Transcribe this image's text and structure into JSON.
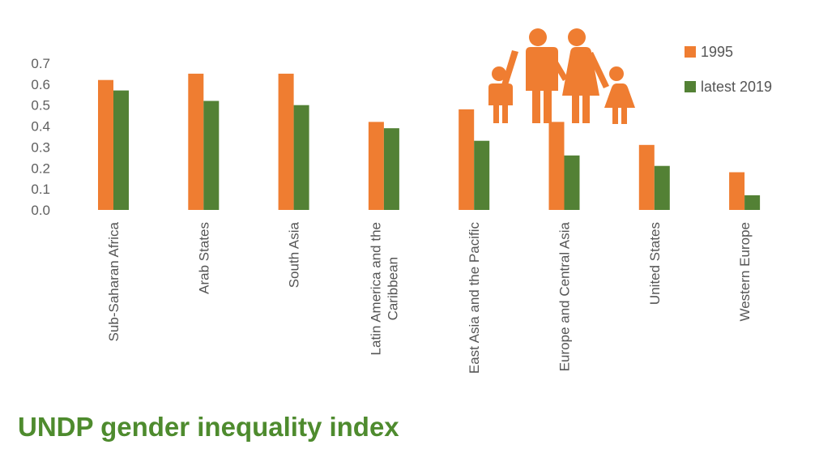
{
  "chart_data": {
    "type": "bar",
    "title": "UNDP gender inequality index",
    "categories": [
      [
        "Sub-Saharan Africa"
      ],
      [
        "Arab States"
      ],
      [
        "South Asia"
      ],
      [
        "Latin America and the",
        "Caribbean"
      ],
      [
        "East Asia and the Pacific"
      ],
      [
        "Europe and Central Asia"
      ],
      [
        "United States"
      ],
      [
        "Western Europe"
      ]
    ],
    "series": [
      {
        "name": "1995",
        "color": "#ef7d31",
        "values": [
          0.62,
          0.65,
          0.65,
          0.42,
          0.48,
          0.42,
          0.31,
          0.18
        ]
      },
      {
        "name": "latest 2019",
        "color": "#538135",
        "values": [
          0.57,
          0.52,
          0.5,
          0.39,
          0.33,
          0.26,
          0.21,
          0.07
        ]
      }
    ],
    "y_ticks": [
      "0.0",
      "0.1",
      "0.2",
      "0.3",
      "0.4",
      "0.5",
      "0.6",
      "0.7"
    ],
    "ylim": [
      0,
      0.7
    ],
    "grid": false,
    "legend_position": "top-right",
    "decoration_icon": "family-icon",
    "decoration_color": "#ef7d31"
  }
}
